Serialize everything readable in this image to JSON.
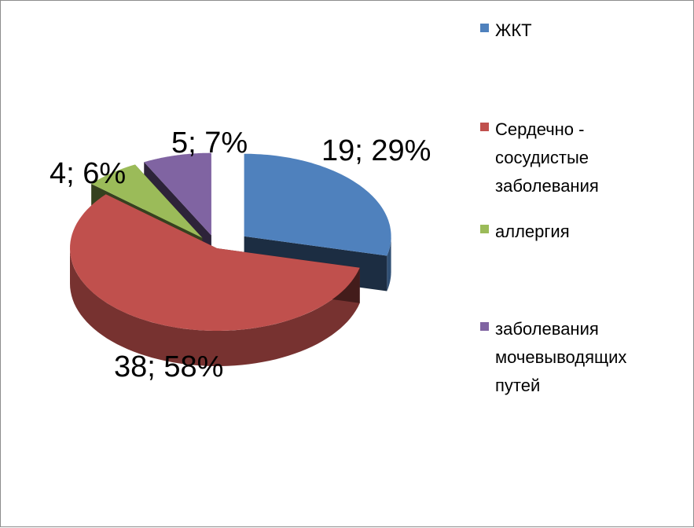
{
  "chart_data": {
    "type": "pie",
    "title": "",
    "style": "3d-exploded",
    "categories": [
      "ЖКТ",
      "Сердечно -\nсосудистые\nзаболевания",
      "аллергия",
      "заболевания\nмочевыводящих\nпутей"
    ],
    "values": [
      19,
      38,
      4,
      5
    ],
    "percentages": [
      "29%",
      "58%",
      "6%",
      "7%"
    ],
    "data_labels": [
      "19; 29%",
      "38; 58%",
      "4; 6%",
      "5; 7%"
    ],
    "colors": [
      "#4F81BD",
      "#C0504D",
      "#9BBB59",
      "#8064A2"
    ],
    "legend_position": "right"
  }
}
